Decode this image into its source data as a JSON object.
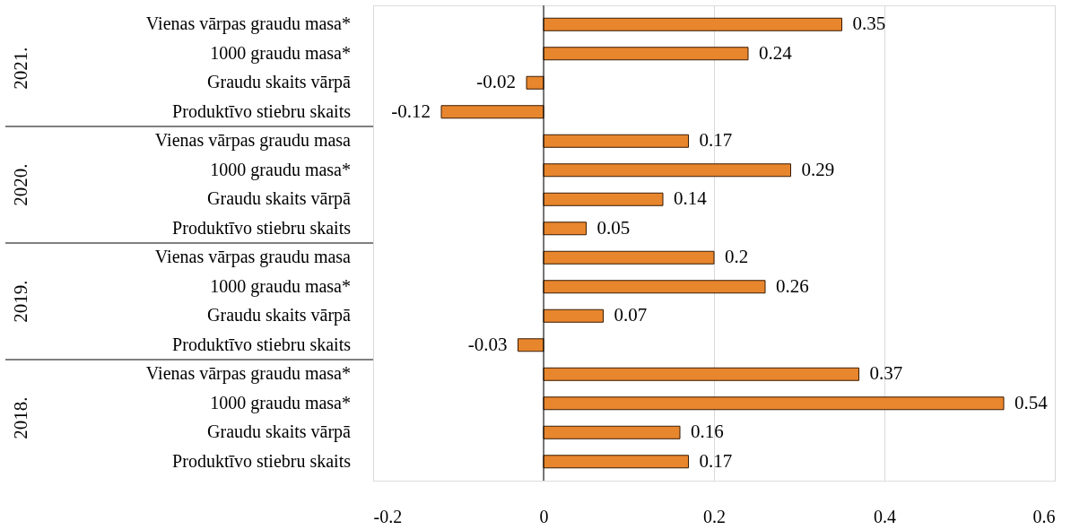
{
  "chart_data": {
    "type": "bar",
    "orientation": "horizontal",
    "categories": [
      "Vienas vārpas graudu masa*",
      "1000 graudu masa*",
      "Graudu skaits vārpā",
      "Produktīvo stiebru skaits",
      "Vienas vārpas graudu masa",
      "1000 graudu masa*",
      "Graudu skaits vārpā",
      "Produktīvo stiebru skaits",
      "Vienas vārpas graudu masa",
      "1000 graudu masa*",
      "Graudu skaits vārpā",
      "Produktīvo stiebru skaits",
      "Vienas vārpas graudu masa*",
      "1000 graudu masa*",
      "Graudu skaits vārpā",
      "Produktīvo stiebru skaits"
    ],
    "values": [
      0.35,
      0.24,
      -0.02,
      -0.12,
      0.17,
      0.29,
      0.14,
      0.05,
      0.2,
      0.26,
      0.07,
      -0.03,
      0.37,
      0.54,
      0.16,
      0.17
    ],
    "color": "#e8862e",
    "annotations": [
      "2021.",
      "2020.",
      "2019.",
      "2018."
    ],
    "xlim": [
      -0.2,
      0.6
    ],
    "xticks": [
      -0.2,
      0,
      0.2,
      0.4,
      0.6
    ],
    "grid": "x",
    "data_labels": true
  }
}
